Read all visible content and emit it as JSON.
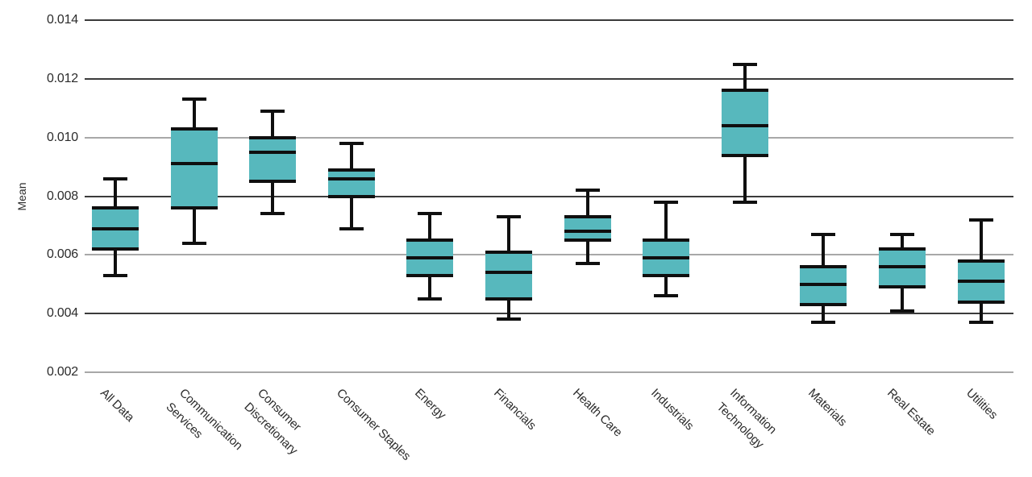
{
  "chart_data": {
    "type": "boxplot",
    "title": "",
    "xlabel": "",
    "ylabel": "Mean",
    "ylim": [
      0.002,
      0.014
    ],
    "grid": true,
    "legend": false,
    "yticks": [
      {
        "value": 0.014,
        "label": "0.014",
        "strong": true
      },
      {
        "value": 0.012,
        "label": "0.012",
        "strong": true
      },
      {
        "value": 0.01,
        "label": "0.010",
        "strong": false
      },
      {
        "value": 0.008,
        "label": "0.008",
        "strong": true
      },
      {
        "value": 0.006,
        "label": "0.006",
        "strong": false
      },
      {
        "value": 0.004,
        "label": "0.004",
        "strong": true
      },
      {
        "value": 0.002,
        "label": "0.002",
        "strong": false
      }
    ],
    "boxes": [
      {
        "category": "All Data",
        "label_lines": [
          "All Data"
        ],
        "whisker_low": 0.0053,
        "q1": 0.0062,
        "median": 0.0069,
        "q3": 0.0076,
        "whisker_high": 0.0086
      },
      {
        "category": "Communication Services",
        "label_lines": [
          "Communication",
          "Services"
        ],
        "whisker_low": 0.0064,
        "q1": 0.0076,
        "median": 0.0091,
        "q3": 0.0103,
        "whisker_high": 0.0113
      },
      {
        "category": "Consumer Discretionary",
        "label_lines": [
          "Consumer",
          "Discretionary"
        ],
        "whisker_low": 0.0074,
        "q1": 0.0085,
        "median": 0.0095,
        "q3": 0.01,
        "whisker_high": 0.0109
      },
      {
        "category": "Consumer Staples",
        "label_lines": [
          "Consumer Staples"
        ],
        "whisker_low": 0.0069,
        "q1": 0.008,
        "median": 0.0086,
        "q3": 0.0089,
        "whisker_high": 0.0098
      },
      {
        "category": "Energy",
        "label_lines": [
          "Energy"
        ],
        "whisker_low": 0.0045,
        "q1": 0.0053,
        "median": 0.0059,
        "q3": 0.0065,
        "whisker_high": 0.0074
      },
      {
        "category": "Financials",
        "label_lines": [
          "Financials"
        ],
        "whisker_low": 0.0038,
        "q1": 0.0045,
        "median": 0.0054,
        "q3": 0.0061,
        "whisker_high": 0.0073
      },
      {
        "category": "Health Care",
        "label_lines": [
          "Health Care"
        ],
        "whisker_low": 0.0057,
        "q1": 0.0065,
        "median": 0.0068,
        "q3": 0.0073,
        "whisker_high": 0.0082
      },
      {
        "category": "Industrials",
        "label_lines": [
          "Industrials"
        ],
        "whisker_low": 0.0046,
        "q1": 0.0053,
        "median": 0.0059,
        "q3": 0.0065,
        "whisker_high": 0.0078
      },
      {
        "category": "Information Technology",
        "label_lines": [
          "Information",
          "Technology"
        ],
        "whisker_low": 0.0078,
        "q1": 0.0094,
        "median": 0.0104,
        "q3": 0.0116,
        "whisker_high": 0.0125
      },
      {
        "category": "Materials",
        "label_lines": [
          "Materials"
        ],
        "whisker_low": 0.0037,
        "q1": 0.0043,
        "median": 0.005,
        "q3": 0.0056,
        "whisker_high": 0.0067
      },
      {
        "category": "Real Estate",
        "label_lines": [
          "Real Estate"
        ],
        "whisker_low": 0.0041,
        "q1": 0.0049,
        "median": 0.0056,
        "q3": 0.0062,
        "whisker_high": 0.0067
      },
      {
        "category": "Utilities",
        "label_lines": [
          "Utilities"
        ],
        "whisker_low": 0.0037,
        "q1": 0.0044,
        "median": 0.0051,
        "q3": 0.0058,
        "whisker_high": 0.0072
      }
    ],
    "colors": {
      "box_fill": "#57b8bd",
      "box_line": "#0f0f0f",
      "grid_strong": "#3b3b3b",
      "grid_light": "#a8a8a8",
      "text": "#2b2b2b"
    }
  }
}
